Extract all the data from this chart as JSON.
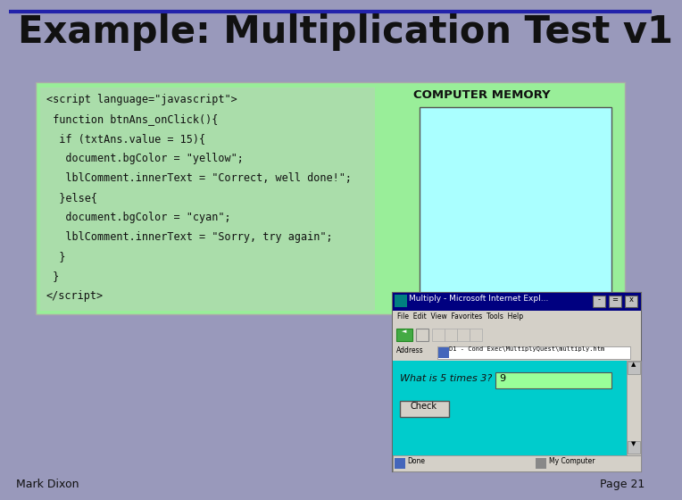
{
  "title": "Example: Multiplication Test v1",
  "title_color": "#111111",
  "title_line_color": "#2222aa",
  "slide_bg": "#9999bb",
  "green_box_color": "#99ee99",
  "code_lines": [
    "<script language=\"javascript\">",
    " function btnAns_onClick(){",
    "  if (txtAns.value = 15){",
    "   document.bgColor = \"yellow\";",
    "   lblComment.innerText = \"Correct, well done!\";",
    "  }else{",
    "   document.bgColor = \"cyan\";",
    "   lblComment.innerText = \"Sorry, try again\";",
    "  }",
    " }",
    "</script>"
  ],
  "computer_memory_label": "COMPUTER MEMORY",
  "memory_box_color": "#aaffff",
  "footer_left": "Mark Dixon",
  "footer_right": "Page 21",
  "footer_color": "#111111",
  "ie_title": "Multiply - Microsoft Internet Expl...",
  "ie_title_bg": "#000080",
  "ie_body_bg": "#00cccc",
  "ie_input_bg": "#99ff99",
  "ie_input_text": "9",
  "ie_question": "What is 5 times 3?",
  "ie_button": "Check",
  "ie_address": "D1 - Cond Exec\\MultiplyQuest\\multiply.htm",
  "ie_menubar": "File  Edit  View  Favorites  Tools  Help",
  "ie_statusbar_left": "Done",
  "ie_statusbar_right": "My Computer"
}
